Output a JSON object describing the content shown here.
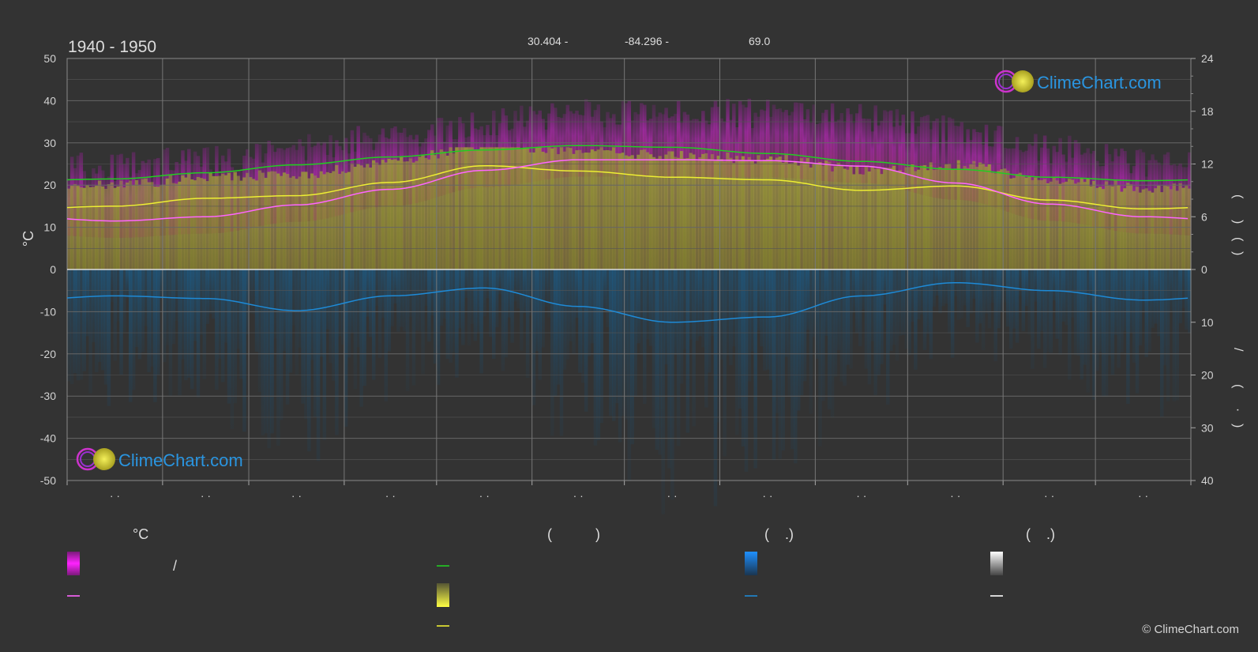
{
  "header": {
    "years": "1940 - 1950",
    "lat": "30.404 -",
    "lon": "-84.296 -",
    "elev": "69.0"
  },
  "brand": {
    "name": "ClimeChart.com",
    "copyright": "© ClimeChart.com"
  },
  "chart_data": {
    "type": "area",
    "ylabel_left": "°C",
    "left_axis": {
      "min": -50,
      "max": 50,
      "ticks": [
        50,
        40,
        30,
        20,
        10,
        0,
        -10,
        -20,
        -30,
        -40,
        -50
      ]
    },
    "right_axis_top": {
      "ticks": [
        24,
        18,
        12,
        6,
        0
      ],
      "label_chars": [
        "(",
        ")",
        "(",
        ")"
      ]
    },
    "right_axis_bottom": {
      "ticks": [
        10,
        20,
        30,
        40
      ],
      "label_chars": [
        "/",
        "(",
        "·",
        ")"
      ]
    },
    "month_tick_labels": [
      "· ·",
      "· ·",
      "· ·",
      "· ·",
      "· ·",
      "· ·",
      "· ·",
      "· ·",
      "· ·",
      "· ·",
      "· ·",
      "· ·"
    ],
    "month_boundaries": [
      0,
      1,
      2,
      3,
      4,
      5,
      6,
      7,
      8,
      9,
      10,
      11,
      12
    ],
    "month_days": [
      31,
      28,
      31,
      30,
      31,
      30,
      31,
      31,
      30,
      31,
      30,
      31
    ],
    "daylight_hours": [
      10.3,
      11.0,
      11.9,
      12.8,
      13.6,
      14.1,
      13.9,
      13.2,
      12.3,
      11.4,
      10.5,
      10.1
    ],
    "sunshine_hours": [
      7.2,
      8.1,
      8.4,
      9.9,
      11.8,
      11.2,
      10.5,
      10.2,
      9.0,
      9.5,
      7.9,
      6.9
    ],
    "mean_temp_c": [
      11.5,
      12.5,
      15.3,
      19.0,
      23.5,
      26.0,
      26.0,
      25.8,
      24.5,
      20.5,
      15.5,
      12.5
    ],
    "max_temp_c": [
      18.0,
      19.5,
      22.0,
      25.5,
      28.5,
      30.5,
      31.0,
      30.5,
      29.5,
      26.5,
      22.0,
      19.0
    ],
    "precip_mm": [
      5.0,
      5.5,
      7.8,
      5.0,
      3.5,
      7.0,
      10.0,
      9.0,
      5.0,
      2.5,
      4.0,
      5.8
    ],
    "colors": {
      "grid": "#666666",
      "zero": "#dddddd",
      "daylight": "#22cc22",
      "sunshine": "#eeee33",
      "temp": "#ff66ff",
      "precip": "#1e8ad6",
      "magenta_band": "#cc22cc",
      "olive_band": "#8a8a2e",
      "blue_band": "#1a5a86"
    }
  },
  "legend": {
    "col1_header": "°C",
    "col1_slash": "/",
    "col2_header": "(           )",
    "col3_header": "(    .)",
    "col4_header": "(    .)"
  }
}
